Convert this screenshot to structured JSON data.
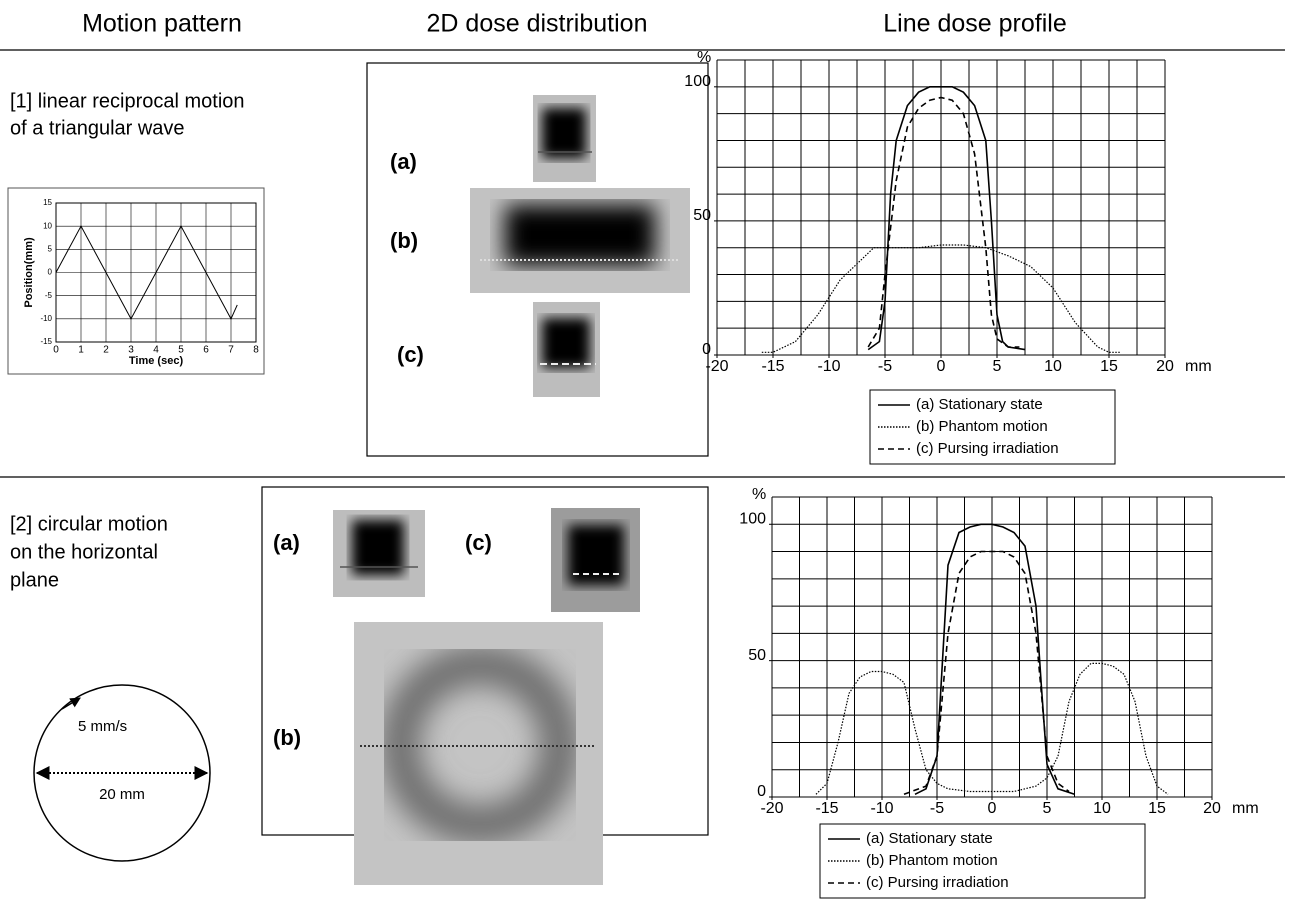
{
  "headers": {
    "motion": "Motion pattern",
    "dose2d": "2D dose distribution",
    "profile": "Line dose profile"
  },
  "rows": [
    {
      "label_lines": [
        "[1] linear reciprocal motion",
        "of a triangular wave"
      ],
      "motion_chart": {
        "type": "line",
        "x_label": "Time (sec)",
        "y_label": "Position(mm)",
        "x": [
          0,
          1,
          3,
          5,
          7,
          7.25
        ],
        "values": [
          0,
          10,
          -10,
          10,
          -10,
          -7
        ],
        "xlim": [
          0,
          8
        ],
        "ylim": [
          -15,
          15
        ],
        "xticks": [
          0,
          1,
          2,
          3,
          4,
          5,
          6,
          7,
          8
        ],
        "yticks": [
          -15,
          -10,
          -5,
          0,
          5,
          10,
          15
        ],
        "grid": true,
        "color": "#000"
      },
      "dose_labels": [
        "(a)",
        "(b)",
        "(c)"
      ],
      "profile": {
        "type": "line",
        "y_unit": "%",
        "x_unit": "mm",
        "xlim": [
          -20,
          20
        ],
        "ylim": [
          0,
          110
        ],
        "xticks": [
          -20,
          -15,
          -10,
          -5,
          0,
          5,
          10,
          15,
          20
        ],
        "yticks": [
          0,
          50,
          100
        ],
        "xgrid": [
          -20,
          -17.5,
          -15,
          -12.5,
          -10,
          -7.5,
          -5,
          -2.5,
          0,
          2.5,
          5,
          7.5,
          10,
          12.5,
          15,
          17.5,
          20
        ],
        "ygrid": [
          0,
          10,
          20,
          30,
          40,
          50,
          60,
          70,
          80,
          90,
          100,
          110
        ],
        "series": [
          {
            "name": "(a) Stationary state",
            "color": "#000",
            "dash": "solid",
            "x": [
              -6.5,
              -5.5,
              -5,
              -4.5,
              -4,
              -3,
              -2,
              -1,
              0,
              1,
              2,
              3,
              4,
              4.5,
              5,
              5.5,
              6,
              7.5
            ],
            "values": [
              2,
              5,
              20,
              60,
              80,
              93,
              98,
              100,
              100,
              100,
              98,
              93,
              80,
              50,
              15,
              5,
              3,
              2
            ]
          },
          {
            "name": "(b) Phantom motion",
            "color": "#000",
            "dash": "dotted",
            "x": [
              -16,
              -15,
              -13,
              -11,
              -9,
              -7,
              -6,
              -4,
              -2,
              0,
              2,
              4,
              6,
              8,
              10,
              12,
              14,
              15,
              16
            ],
            "values": [
              1,
              1,
              5,
              15,
              28,
              36,
              40,
              40,
              40,
              41,
              41,
              40,
              37,
              33,
              25,
              12,
              3,
              1,
              1
            ]
          },
          {
            "name": "(c) Pursing irradiation",
            "color": "#000",
            "dash": "dashed",
            "x": [
              -6.5,
              -5.5,
              -5,
              -4,
              -3,
              -2,
              -1,
              0,
              1,
              2,
              3,
              4,
              4.5,
              5,
              6,
              7
            ],
            "values": [
              3,
              10,
              30,
              65,
              85,
              92,
              95,
              96,
              95,
              90,
              75,
              40,
              15,
              6,
              3,
              3
            ]
          }
        ]
      }
    },
    {
      "label_lines": [
        "[2] circular motion",
        "on the horizontal",
        "plane"
      ],
      "circle_texts": {
        "speed": "5 mm/s",
        "diameter": "20 mm"
      },
      "dose_labels": [
        "(a)",
        "(c)",
        "(b)"
      ],
      "profile": {
        "type": "line",
        "y_unit": "%",
        "x_unit": "mm",
        "xlim": [
          -20,
          20
        ],
        "ylim": [
          0,
          110
        ],
        "xticks": [
          -20,
          -15,
          -10,
          -5,
          0,
          5,
          10,
          15,
          20
        ],
        "yticks": [
          0,
          50,
          100
        ],
        "xgrid": [
          -20,
          -17.5,
          -15,
          -12.5,
          -10,
          -7.5,
          -5,
          -2.5,
          0,
          2.5,
          5,
          7.5,
          10,
          12.5,
          15,
          17.5,
          20
        ],
        "ygrid": [
          0,
          10,
          20,
          30,
          40,
          50,
          60,
          70,
          80,
          90,
          100,
          110
        ],
        "series": [
          {
            "name": "(a) Stationary state",
            "color": "#000",
            "dash": "solid",
            "x": [
              -7,
              -6,
              -5,
              -4.5,
              -4,
              -3,
              -2,
              -1,
              0,
              1,
              2,
              3,
              4,
              4.5,
              5,
              6,
              7.5
            ],
            "values": [
              1,
              3,
              15,
              50,
              85,
              97,
              99,
              100,
              100,
              99,
              97,
              92,
              70,
              40,
              12,
              3,
              1
            ]
          },
          {
            "name": "(b) Phantom motion",
            "color": "#000",
            "dash": "dotted",
            "x": [
              -16,
              -15,
              -14,
              -13,
              -12,
              -11,
              -10,
              -9,
              -8,
              -7,
              -6,
              -5,
              -4,
              -2,
              0,
              2,
              4,
              5,
              6,
              7,
              8,
              9,
              10,
              11,
              12,
              13,
              14,
              15,
              16
            ],
            "values": [
              1,
              5,
              20,
              38,
              44,
              46,
              46,
              45,
              42,
              25,
              10,
              5,
              3,
              2,
              2,
              2,
              4,
              7,
              15,
              35,
              45,
              49,
              49,
              48,
              45,
              35,
              15,
              4,
              1
            ]
          },
          {
            "name": "(c) Pursing irradiation",
            "color": "#000",
            "dash": "dashed",
            "x": [
              -8,
              -6,
              -5,
              -4,
              -3,
              -2,
              -1,
              0,
              1,
              2,
              3,
              4,
              5,
              6,
              7
            ],
            "values": [
              1,
              4,
              15,
              60,
              82,
              88,
              90,
              90,
              90,
              88,
              82,
              60,
              15,
              5,
              2
            ]
          }
        ]
      }
    }
  ]
}
